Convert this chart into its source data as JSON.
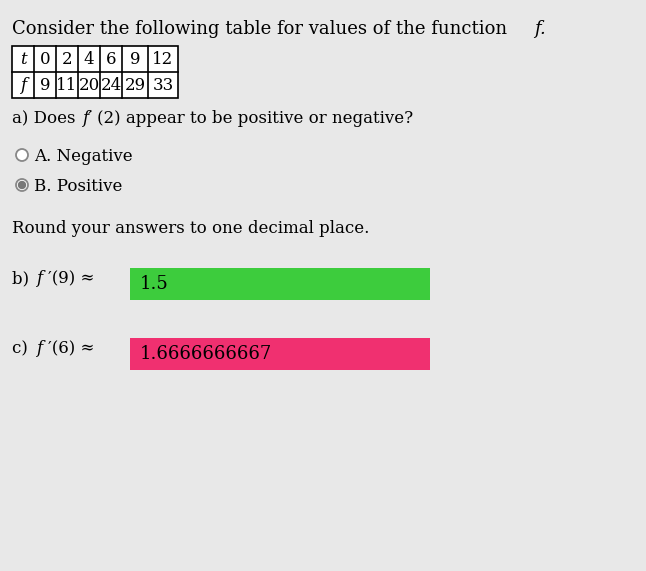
{
  "background_color": "#e8e8e8",
  "table_headers": [
    "t",
    "0",
    "2",
    "4",
    "6",
    "9",
    "12"
  ],
  "table_values": [
    "f",
    "9",
    "11",
    "20",
    "24",
    "29",
    "33"
  ],
  "option_A_text": "A. Negative",
  "option_B_text": "B. Positive",
  "round_text": "Round your answers to one decimal place.",
  "part_b_value": "1.5",
  "part_b_box_color": "#3dcc3d",
  "part_c_value": "1.6666666667",
  "part_c_box_color": "#f03070",
  "font_size_title": 13,
  "font_size_body": 12,
  "font_size_table": 12,
  "font_size_answer": 13
}
